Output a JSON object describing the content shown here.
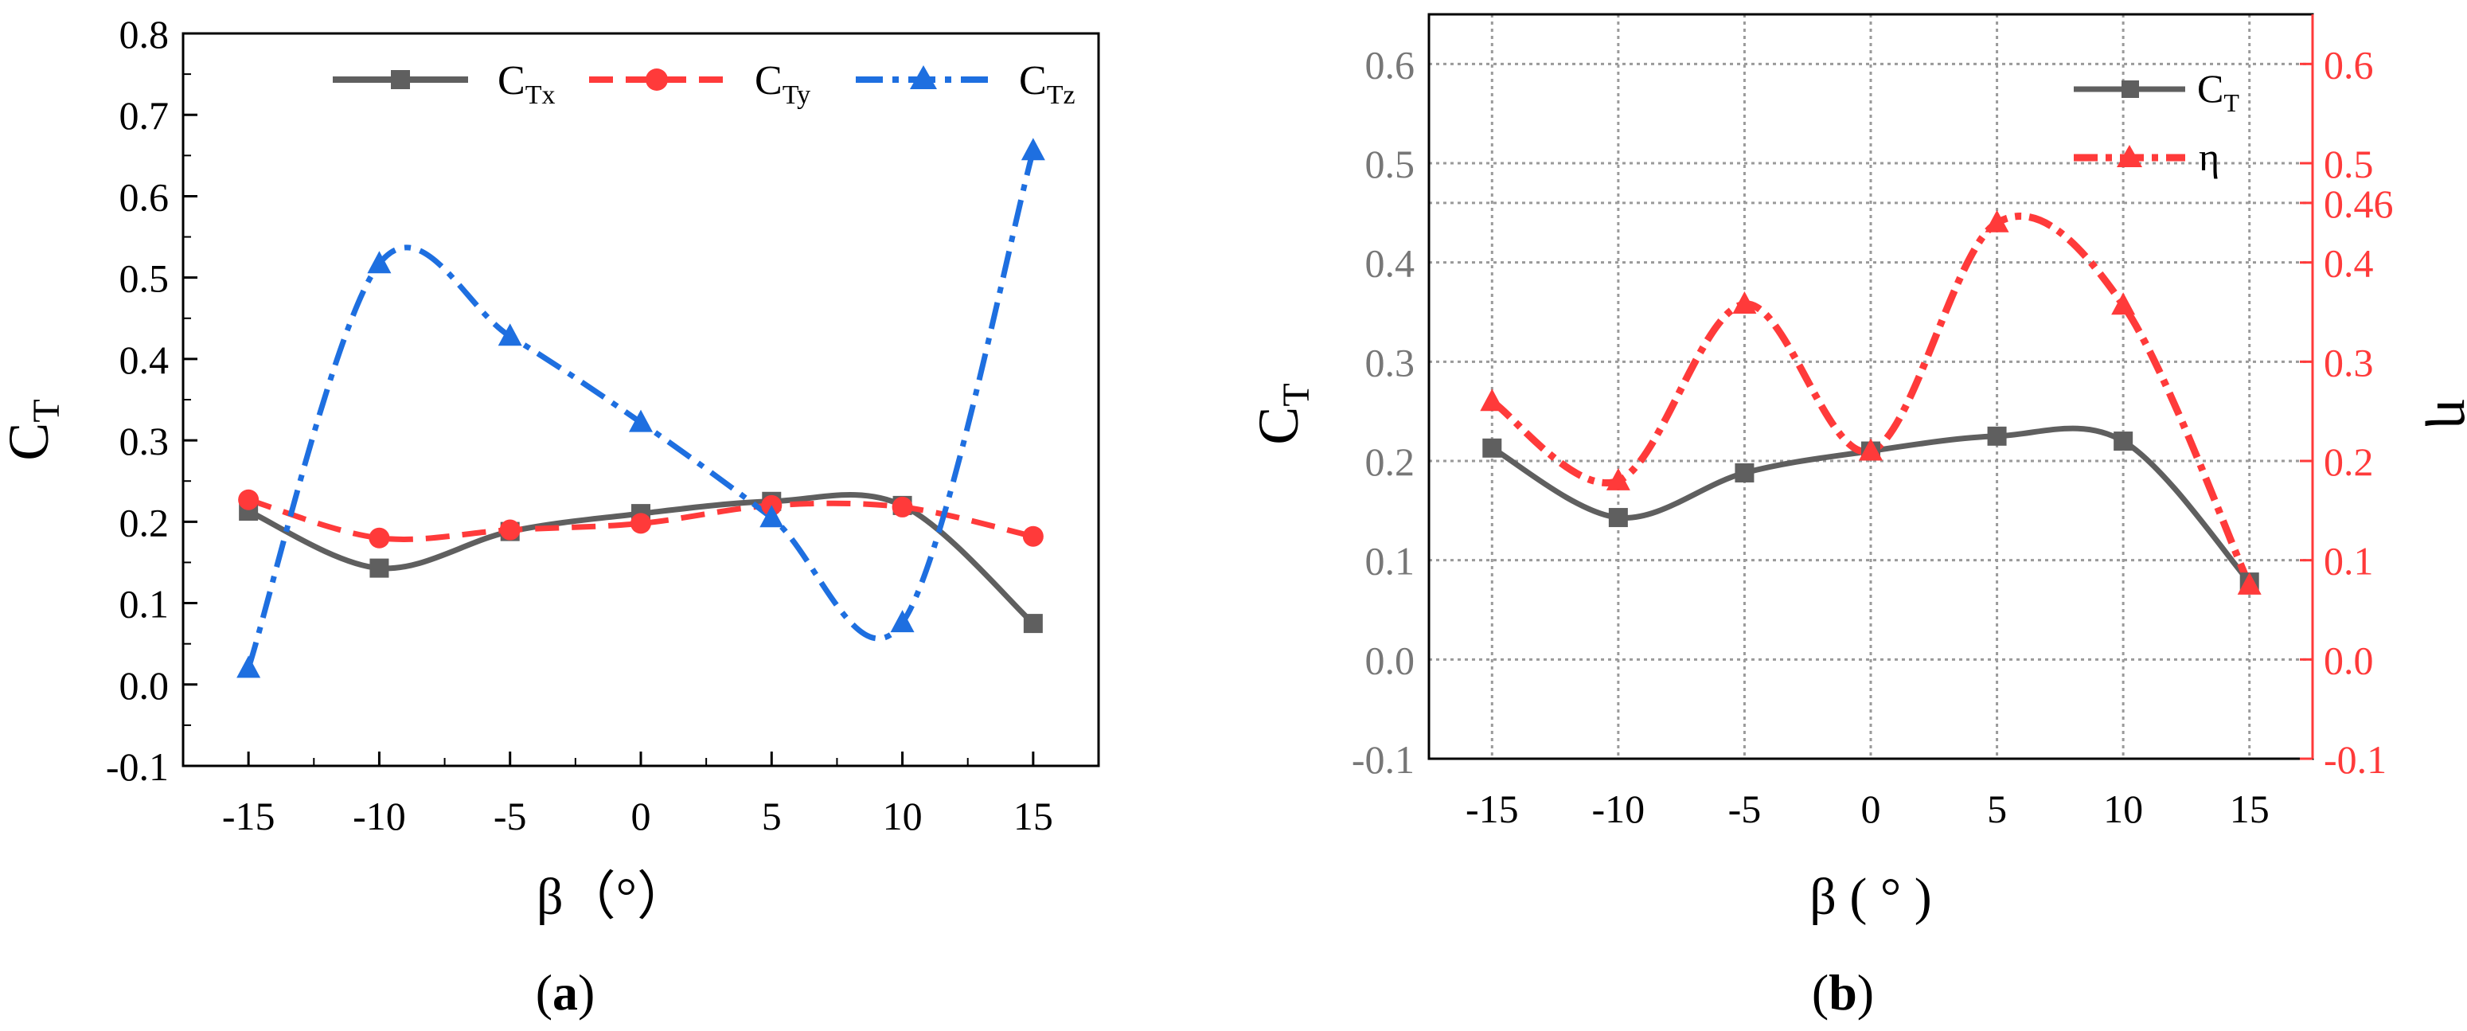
{
  "colors": {
    "gray": "#5f5f5f",
    "red": "#ff3a3a",
    "blue": "#1e6fe0",
    "grid": "#9a9a9a",
    "axis": "#000000"
  },
  "panels": {
    "a": {
      "label_prefix": "(",
      "label_letter": "a",
      "label_suffix": ")"
    },
    "b": {
      "label_prefix": "(",
      "label_letter": "b",
      "label_suffix": ")"
    }
  },
  "chart_data": [
    {
      "type": "line",
      "panel": "a",
      "x": [
        -15,
        -10,
        -5,
        0,
        5,
        10,
        15
      ],
      "xticks": [
        "-15",
        "-10",
        "-5",
        "0",
        "5",
        "10",
        "15"
      ],
      "xlim": [
        -17.5,
        17.5
      ],
      "ylim": [
        -0.1,
        0.8
      ],
      "yticks": [
        "-0.1",
        "0.0",
        "0.1",
        "0.2",
        "0.3",
        "0.4",
        "0.5",
        "0.6",
        "0.7",
        "0.8"
      ],
      "grid": false,
      "xlabel": "β（°）",
      "ylabel": {
        "main": "C",
        "sub": "T"
      },
      "legend_position": "top",
      "series": [
        {
          "name": {
            "main": "C",
            "sub": "Tx"
          },
          "color": "gray",
          "marker": "square",
          "dash": "solid",
          "values": [
            0.213,
            0.143,
            0.188,
            0.21,
            0.225,
            0.22,
            0.075
          ]
        },
        {
          "name": {
            "main": "C",
            "sub": "Ty"
          },
          "color": "red",
          "marker": "circle",
          "dash": "dash",
          "values": [
            0.227,
            0.18,
            0.19,
            0.198,
            0.22,
            0.218,
            0.182
          ]
        },
        {
          "name": {
            "main": "C",
            "sub": "Tz"
          },
          "color": "blue",
          "marker": "triangle",
          "dash": "dashdot",
          "values": [
            0.02,
            0.517,
            0.428,
            0.322,
            0.205,
            0.076,
            0.656
          ]
        }
      ]
    },
    {
      "type": "line",
      "panel": "b",
      "x": [
        -15,
        -10,
        -5,
        0,
        5,
        10,
        15
      ],
      "xticks": [
        "-15",
        "-10",
        "-5",
        "0",
        "5",
        "10",
        "15"
      ],
      "xlim": [
        -17.5,
        17.5
      ],
      "ylim": [
        -0.1,
        0.65
      ],
      "yticks": [
        "-0.1",
        "0.0",
        "0.1",
        "0.2",
        "0.3",
        "0.4",
        "0.5",
        "0.6"
      ],
      "y2lim": [
        -0.1,
        0.65
      ],
      "y2ticks": [
        "-0.1",
        "0.0",
        "0.1",
        "0.2",
        "0.3",
        "0.4",
        "0.46",
        "0.5",
        "0.6"
      ],
      "grid": true,
      "xlabel": "β ( ° )",
      "ylabel": {
        "main": "C",
        "sub": "T"
      },
      "y2label": "η",
      "legend_position": "top-right",
      "series": [
        {
          "name": {
            "main": "C",
            "sub": "T"
          },
          "color": "gray",
          "marker": "square",
          "dash": "solid",
          "axis": "left",
          "values": [
            0.213,
            0.143,
            0.188,
            0.21,
            0.225,
            0.22,
            0.078
          ]
        },
        {
          "name": {
            "main": "η",
            "sub": ""
          },
          "color": "red",
          "marker": "triangle",
          "dash": "dashdot",
          "axis": "right",
          "values": [
            0.26,
            0.18,
            0.358,
            0.21,
            0.44,
            0.357,
            0.075
          ]
        }
      ]
    }
  ]
}
